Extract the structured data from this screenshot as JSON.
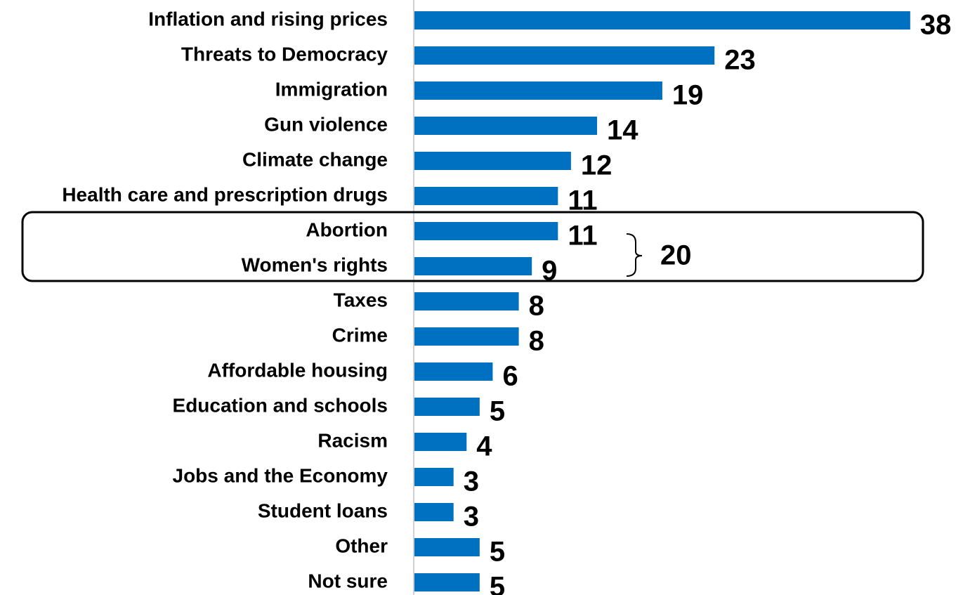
{
  "chart_data": {
    "type": "bar",
    "orientation": "horizontal",
    "categories": [
      "Inflation and rising prices",
      "Threats to Democracy",
      "Immigration",
      "Gun violence",
      "Climate change",
      "Health care and prescription drugs",
      "Abortion",
      "Women's rights",
      "Taxes",
      "Crime",
      "Affordable housing",
      "Education and schools",
      "Racism",
      "Jobs and the Economy",
      "Student loans",
      "Other",
      "Not sure"
    ],
    "values": [
      38,
      23,
      19,
      14,
      12,
      11,
      11,
      9,
      8,
      8,
      6,
      5,
      4,
      3,
      3,
      5,
      5
    ],
    "color": "#0070c0",
    "xlim": [
      0,
      40
    ],
    "annotations": [
      {
        "text": "20"
      }
    ]
  }
}
